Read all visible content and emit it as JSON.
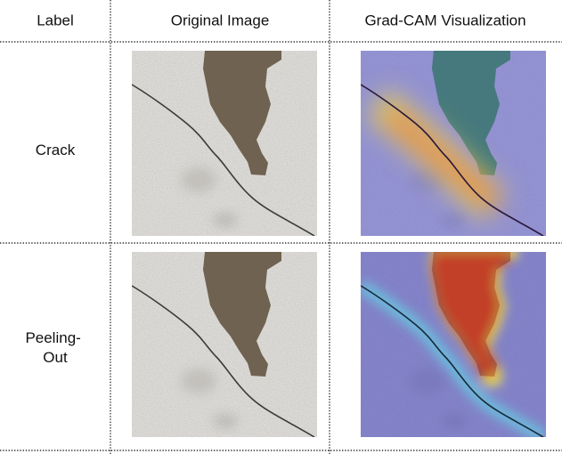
{
  "table": {
    "header": [
      "Label",
      "Original Image",
      "Grad-CAM Visualization"
    ],
    "rows": [
      {
        "label": [
          "Crack"
        ]
      },
      {
        "label": [
          "Peeling-",
          "Out"
        ]
      }
    ]
  }
}
